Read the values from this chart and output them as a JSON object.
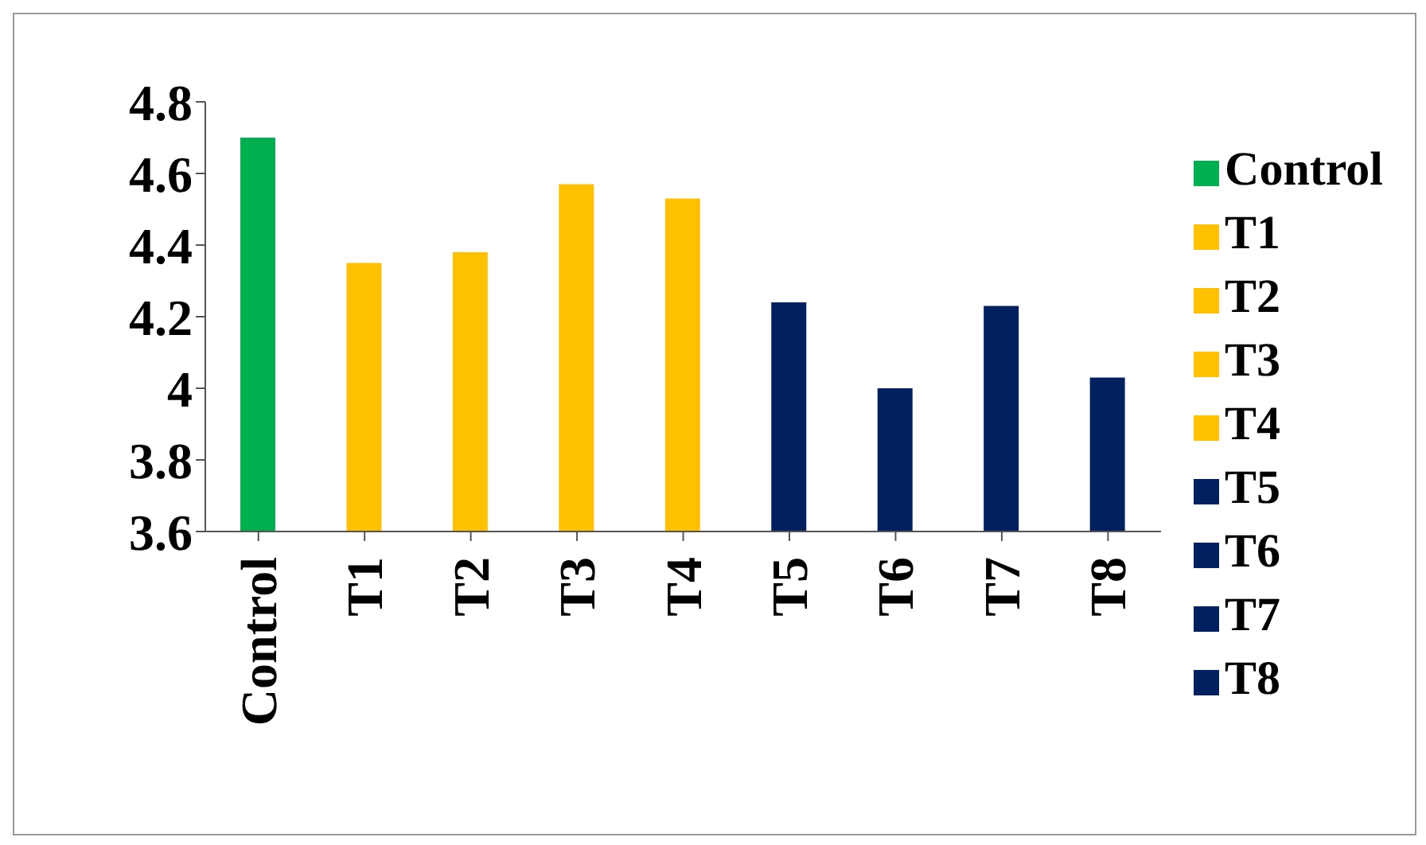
{
  "chart_data": {
    "type": "bar",
    "stacked": true,
    "categories": [
      "Control",
      "T1",
      "T2",
      "T3",
      "T4",
      "T5",
      "T6",
      "T7",
      "T8"
    ],
    "series": [
      {
        "name": "Control",
        "color": "#00b050",
        "values": [
          4.7,
          null,
          null,
          null,
          null,
          null,
          null,
          null,
          null
        ]
      },
      {
        "name": "T1",
        "color": "#ffc000",
        "values": [
          null,
          4.35,
          null,
          null,
          null,
          null,
          null,
          null,
          null
        ]
      },
      {
        "name": "T2",
        "color": "#ffc000",
        "values": [
          null,
          null,
          4.38,
          null,
          null,
          null,
          null,
          null,
          null
        ]
      },
      {
        "name": "T3",
        "color": "#ffc000",
        "values": [
          null,
          null,
          null,
          4.57,
          null,
          null,
          null,
          null,
          null
        ]
      },
      {
        "name": "T4",
        "color": "#ffc000",
        "values": [
          null,
          null,
          null,
          null,
          4.53,
          null,
          null,
          null,
          null
        ]
      },
      {
        "name": "T5",
        "color": "#002060",
        "values": [
          null,
          null,
          null,
          null,
          null,
          4.24,
          null,
          null,
          null
        ]
      },
      {
        "name": "T6",
        "color": "#002060",
        "values": [
          null,
          null,
          null,
          null,
          null,
          null,
          4.0,
          null,
          null
        ]
      },
      {
        "name": "T7",
        "color": "#002060",
        "values": [
          null,
          null,
          null,
          null,
          null,
          null,
          null,
          4.23,
          null
        ]
      },
      {
        "name": "T8",
        "color": "#002060",
        "values": [
          null,
          null,
          null,
          null,
          null,
          null,
          null,
          null,
          4.03
        ]
      }
    ],
    "ylim": [
      3.6,
      4.8
    ],
    "yticks": [
      3.6,
      3.8,
      4,
      4.2,
      4.4,
      4.6,
      4.8
    ],
    "legend": "right"
  }
}
